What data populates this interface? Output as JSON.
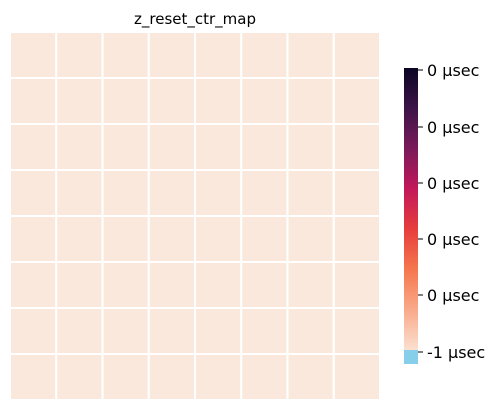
{
  "chart_data": {
    "type": "heatmap",
    "title": "z_reset_ctr_map",
    "rows": 8,
    "cols": 8,
    "values": [
      [
        0,
        0,
        0,
        0,
        0,
        0,
        0,
        0
      ],
      [
        0,
        0,
        0,
        0,
        0,
        0,
        0,
        0
      ],
      [
        0,
        0,
        0,
        0,
        0,
        0,
        0,
        0
      ],
      [
        0,
        0,
        0,
        0,
        0,
        0,
        0,
        0
      ],
      [
        0,
        0,
        0,
        0,
        0,
        0,
        0,
        0
      ],
      [
        0,
        0,
        0,
        0,
        0,
        0,
        0,
        0
      ],
      [
        0,
        0,
        0,
        0,
        0,
        0,
        0,
        0
      ],
      [
        0,
        0,
        0,
        0,
        0,
        0,
        0,
        0
      ]
    ],
    "cell_color": "#fae8dc",
    "grid_line_color": "#ffffff",
    "colorbar": {
      "tick_labels": [
        "0 µsec",
        "0 µsec",
        "0 µsec",
        "0 µsec",
        "0 µsec",
        "-1 µsec"
      ],
      "gradient": [
        "#0b0525",
        "#3d1448",
        "#7a1a5a",
        "#c2185b",
        "#e63d3d",
        "#f5774e",
        "#f9a98a",
        "#fbe0d0"
      ],
      "under_color": "#87ceeb"
    }
  }
}
